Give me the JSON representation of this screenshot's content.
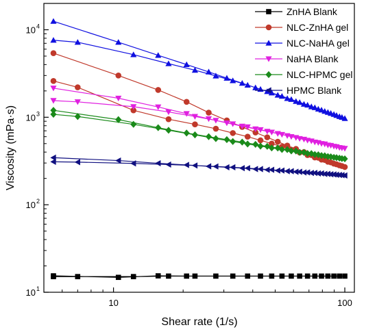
{
  "chart_data": {
    "type": "line",
    "title": "",
    "xlabel": "Shear rate (1/s)",
    "ylabel": "Viscosity (mPa·s)",
    "xscale": "log",
    "yscale": "log",
    "xlim": [
      5,
      110
    ],
    "ylim": [
      10,
      20000
    ],
    "x_ticks": [
      10,
      100
    ],
    "y_ticks": [
      10,
      100,
      1000,
      10000
    ],
    "x_ticklabels": [
      "10",
      "100"
    ],
    "y_ticklabels": [
      "10",
      "10",
      "10",
      "10"
    ],
    "y_tick_exponents": [
      "1",
      "2",
      "3",
      "4"
    ],
    "legend_position": "top-right",
    "series": [
      {
        "name": "ZnHA Blank",
        "marker": "square",
        "color": "#000000",
        "x": [
          5.5,
          10.5,
          15.6,
          20.7,
          100,
          94.8,
          89.7,
          84.5,
          79.3,
          74.2,
          69,
          63.8,
          58.7,
          53.5,
          48.3,
          43.2,
          38,
          32.8,
          27.7,
          22.5,
          17.3,
          12.2,
          7,
          5.5
        ],
        "y": [
          15.4,
          14.8,
          15.4,
          15.3,
          15.3,
          15.3,
          15.3,
          15.3,
          15.3,
          15.3,
          15.3,
          15.3,
          15.3,
          15.3,
          15.3,
          15.3,
          15.3,
          15.3,
          15.3,
          15.3,
          15.3,
          15.1,
          15.1,
          15.1
        ]
      },
      {
        "name": "NLC-ZnHA gel",
        "marker": "circle",
        "color": "#c0392b",
        "x": [
          5.5,
          10.5,
          15.6,
          20.7,
          25.8,
          30.9,
          36,
          41.1,
          46.2,
          51.3,
          56.4,
          61.5,
          66.6,
          71.7,
          76.8,
          81.9,
          87,
          92.1,
          97.2,
          100,
          94.8,
          89.7,
          84.5,
          79.3,
          74.2,
          69,
          63.8,
          58.7,
          53.5,
          48.3,
          43.2,
          38,
          32.8,
          27.7,
          22.5,
          17.3,
          12.2,
          7,
          5.5
        ],
        "y": [
          5400,
          3000,
          2050,
          1500,
          1130,
          920,
          775,
          670,
          590,
          525,
          475,
          435,
          400,
          370,
          345,
          325,
          305,
          290,
          277,
          270,
          282,
          295,
          310,
          328,
          347,
          370,
          395,
          425,
          460,
          500,
          545,
          600,
          660,
          740,
          830,
          950,
          1200,
          2200,
          2600
        ]
      },
      {
        "name": "NLC-NaHA gel",
        "marker": "triangle-up",
        "color": "#1010e0",
        "x": [
          5.5,
          10.5,
          15.6,
          20.7,
          25.8,
          30.9,
          36,
          41.1,
          46.2,
          51.3,
          56.4,
          61.5,
          66.6,
          71.7,
          76.8,
          81.9,
          87,
          92.1,
          97.2,
          100,
          94.8,
          89.7,
          84.5,
          79.3,
          74.2,
          69,
          63.8,
          58.7,
          53.5,
          48.3,
          43.2,
          38,
          32.8,
          27.7,
          22.5,
          17.3,
          12.2,
          7,
          5.5
        ],
        "y": [
          12500,
          7200,
          5100,
          4000,
          3300,
          2800,
          2450,
          2180,
          1970,
          1790,
          1640,
          1520,
          1410,
          1320,
          1240,
          1170,
          1110,
          1050,
          1000,
          970,
          1020,
          1080,
          1140,
          1210,
          1290,
          1380,
          1480,
          1600,
          1740,
          1900,
          2090,
          2330,
          2620,
          2970,
          3450,
          4100,
          5200,
          7200,
          7600
        ]
      },
      {
        "name": "NaHA Blank",
        "marker": "triangle-down",
        "color": "#e020e0",
        "x": [
          5.5,
          10.5,
          15.6,
          20.7,
          25.8,
          30.9,
          36,
          41.1,
          46.2,
          51.3,
          56.4,
          61.5,
          66.6,
          71.7,
          76.8,
          81.9,
          87,
          92.1,
          97.2,
          100,
          94.8,
          89.7,
          84.5,
          79.3,
          74.2,
          69,
          63.8,
          58.7,
          53.5,
          48.3,
          43.2,
          38,
          32.8,
          27.7,
          22.5,
          17.3,
          12.2,
          7,
          5.5
        ],
        "y": [
          2150,
          1650,
          1310,
          1100,
          960,
          860,
          790,
          735,
          690,
          650,
          615,
          585,
          560,
          535,
          513,
          494,
          476,
          460,
          445,
          440,
          450,
          465,
          480,
          500,
          520,
          545,
          570,
          600,
          635,
          675,
          720,
          775,
          840,
          920,
          1020,
          1150,
          1320,
          1500,
          1550
        ]
      },
      {
        "name": "NLC-HPMC gel",
        "marker": "diamond",
        "color": "#1a8a1a",
        "x": [
          5.5,
          10.5,
          15.6,
          20.7,
          25.8,
          30.9,
          36,
          41.1,
          46.2,
          51.3,
          56.4,
          61.5,
          66.6,
          71.7,
          76.8,
          81.9,
          87,
          92.1,
          97.2,
          100,
          94.8,
          89.7,
          84.5,
          79.3,
          74.2,
          69,
          63.8,
          58.7,
          53.5,
          48.3,
          43.2,
          38,
          32.8,
          27.7,
          22.5,
          17.3,
          12.2,
          7,
          5.5
        ],
        "y": [
          1200,
          940,
          760,
          660,
          600,
          555,
          520,
          490,
          465,
          445,
          427,
          411,
          397,
          385,
          373,
          363,
          353,
          345,
          337,
          335,
          341,
          348,
          356,
          365,
          375,
          386,
          398,
          412,
          428,
          446,
          468,
          495,
          528,
          570,
          630,
          710,
          830,
          1020,
          1080
        ]
      },
      {
        "name": "HPMC Blank",
        "marker": "triangle-left",
        "color": "#101080",
        "x": [
          5.5,
          10.5,
          15.6,
          20.7,
          25.8,
          30.9,
          36,
          41.1,
          46.2,
          51.3,
          56.4,
          61.5,
          66.6,
          71.7,
          76.8,
          81.9,
          87,
          92.1,
          97.2,
          100,
          94.8,
          89.7,
          84.5,
          79.3,
          74.2,
          69,
          63.8,
          58.7,
          53.5,
          48.3,
          43.2,
          38,
          32.8,
          27.7,
          22.5,
          17.3,
          12.2,
          7,
          5.5
        ],
        "y": [
          345,
          320,
          298,
          285,
          275,
          268,
          262,
          256,
          251,
          246,
          242,
          238,
          234,
          231,
          228,
          225,
          223,
          220,
          218,
          216,
          219,
          222,
          225,
          228,
          231,
          234,
          238,
          242,
          246,
          251,
          256,
          262,
          268,
          274,
          281,
          288,
          297,
          307,
          310
        ]
      }
    ]
  }
}
